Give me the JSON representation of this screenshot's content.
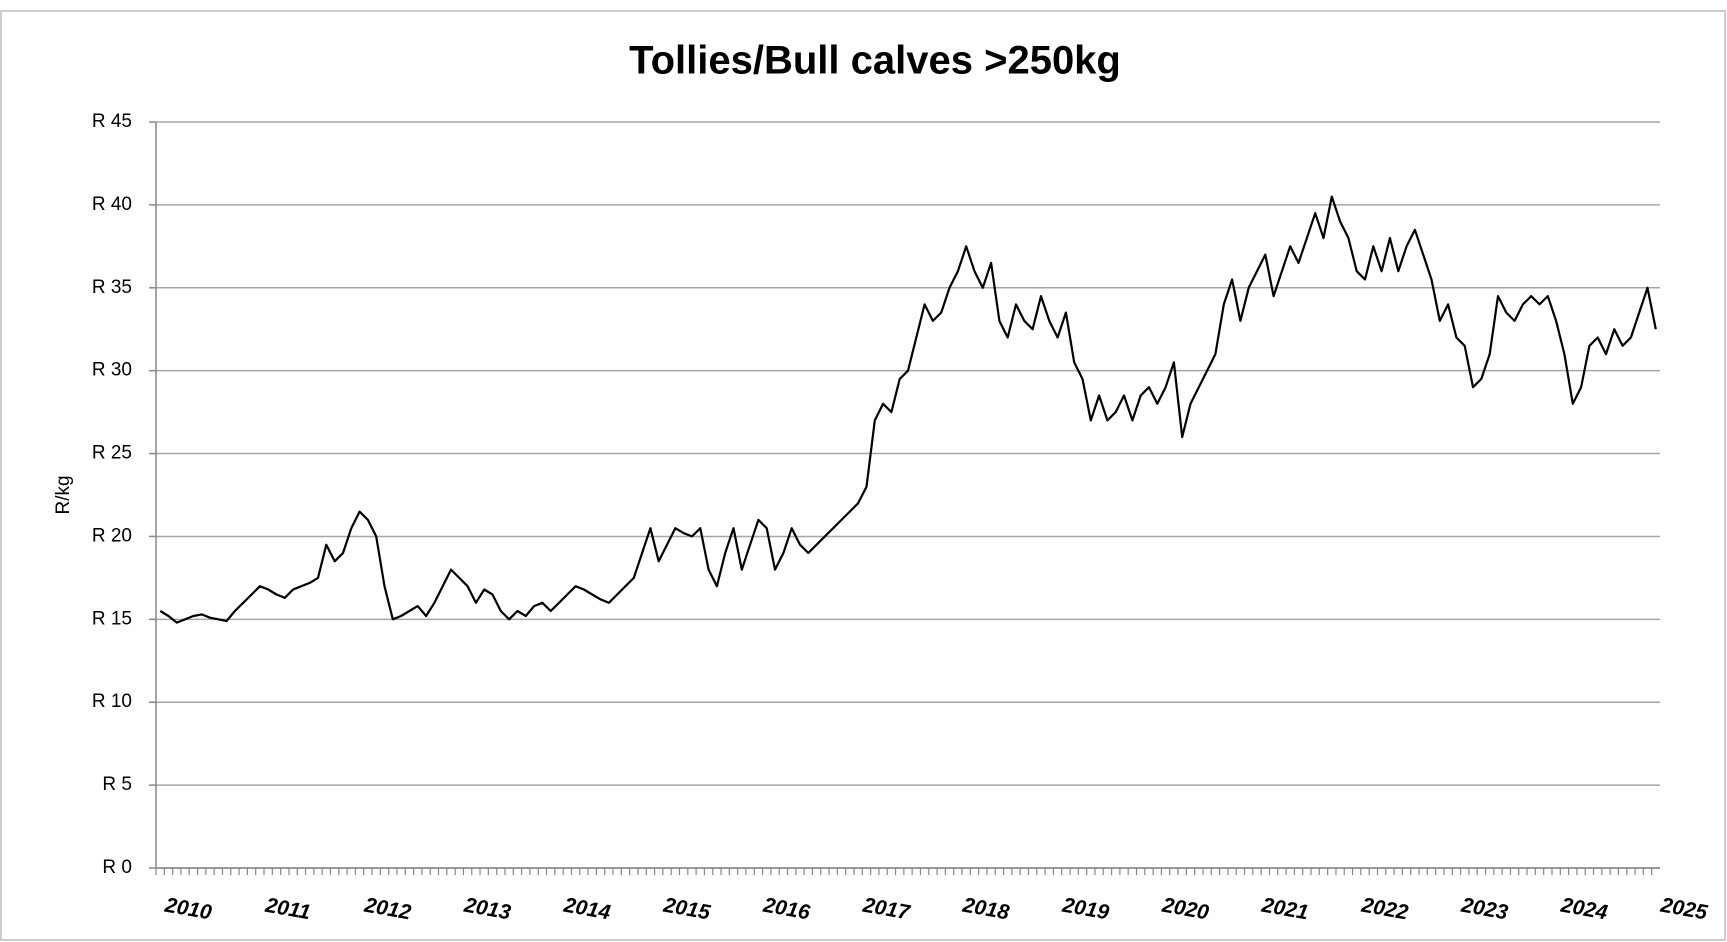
{
  "chart_data": {
    "type": "line",
    "title": "Tollies/Bull calves >250kg",
    "y_label": "R/kg",
    "categories": [
      "2010",
      null,
      null,
      null,
      null,
      null,
      null,
      null,
      null,
      null,
      null,
      null,
      "2011",
      null,
      null,
      null,
      null,
      null,
      null,
      null,
      null,
      null,
      null,
      null,
      "2012",
      null,
      null,
      null,
      null,
      null,
      null,
      null,
      null,
      null,
      null,
      null,
      "2013",
      null,
      null,
      null,
      null,
      null,
      null,
      null,
      null,
      null,
      null,
      null,
      "2014",
      null,
      null,
      null,
      null,
      null,
      null,
      null,
      null,
      null,
      null,
      null,
      "2015",
      null,
      null,
      null,
      null,
      null,
      null,
      null,
      null,
      null,
      null,
      null,
      "2016",
      null,
      null,
      null,
      null,
      null,
      null,
      null,
      null,
      null,
      null,
      null,
      "2017",
      null,
      null,
      null,
      null,
      null,
      null,
      null,
      null,
      null,
      null,
      null,
      "2018",
      null,
      null,
      null,
      null,
      null,
      null,
      null,
      null,
      null,
      null,
      null,
      "2019",
      null,
      null,
      null,
      null,
      null,
      null,
      null,
      null,
      null,
      null,
      null,
      "2020",
      null,
      null,
      null,
      null,
      null,
      null,
      null,
      null,
      null,
      null,
      null,
      "2021",
      null,
      null,
      null,
      null,
      null,
      null,
      null,
      null,
      null,
      null,
      null,
      "2022",
      null,
      null,
      null,
      null,
      null,
      null,
      null,
      null,
      null,
      null,
      null,
      "2023",
      null,
      null,
      null,
      null,
      null,
      null,
      null,
      null,
      null,
      null,
      null,
      "2024",
      null,
      null,
      null,
      null,
      null,
      null,
      null,
      null,
      null,
      null,
      null,
      "2025"
    ],
    "series": [
      {
        "name": "Tollies/Bull calves >250kg",
        "color": "#000000",
        "values": [
          15.5,
          15.2,
          14.8,
          15.0,
          15.2,
          15.3,
          15.1,
          15.0,
          14.9,
          15.5,
          16.0,
          16.5,
          17.0,
          16.8,
          16.5,
          16.3,
          16.8,
          17.0,
          17.2,
          17.5,
          19.5,
          18.5,
          19.0,
          20.5,
          21.5,
          21.0,
          20.0,
          17.0,
          15.0,
          15.2,
          15.5,
          15.8,
          15.2,
          16.0,
          17.0,
          18.0,
          17.5,
          17.0,
          16.0,
          16.8,
          16.5,
          15.5,
          15.0,
          15.5,
          15.2,
          15.8,
          16.0,
          15.5,
          16.0,
          16.5,
          17.0,
          16.8,
          16.5,
          16.2,
          16.0,
          16.5,
          17.0,
          17.5,
          19.0,
          20.5,
          18.5,
          19.5,
          20.5,
          20.2,
          20.0,
          20.5,
          18.0,
          17.0,
          19.0,
          20.5,
          18.0,
          19.5,
          21.0,
          20.5,
          18.0,
          19.0,
          20.5,
          19.5,
          19.0,
          19.5,
          20.0,
          20.5,
          21.0,
          21.5,
          22.0,
          23.0,
          27.0,
          28.0,
          27.5,
          29.5,
          30.0,
          32.0,
          34.0,
          33.0,
          33.5,
          35.0,
          36.0,
          37.5,
          36.0,
          35.0,
          36.5,
          33.0,
          32.0,
          34.0,
          33.0,
          32.5,
          34.5,
          33.0,
          32.0,
          33.5,
          30.5,
          29.5,
          27.0,
          28.5,
          27.0,
          27.5,
          28.5,
          27.0,
          28.5,
          29.0,
          28.0,
          29.0,
          30.5,
          26.0,
          28.0,
          29.0,
          30.0,
          31.0,
          34.0,
          35.5,
          33.0,
          35.0,
          36.0,
          37.0,
          34.5,
          36.0,
          37.5,
          36.5,
          38.0,
          39.5,
          38.0,
          40.5,
          39.0,
          38.0,
          36.0,
          35.5,
          37.5,
          36.0,
          38.0,
          36.0,
          37.5,
          38.5,
          37.0,
          35.5,
          33.0,
          34.0,
          32.0,
          31.5,
          29.0,
          29.5,
          31.0,
          34.5,
          33.5,
          33.0,
          34.0,
          34.5,
          34.0,
          34.5,
          33.0,
          31.0,
          28.0,
          29.0,
          31.5,
          32.0,
          31.0,
          32.5,
          31.5,
          32.0,
          33.5,
          35.0,
          32.5
        ]
      }
    ],
    "ylim": [
      0,
      45
    ],
    "yticks": [
      {
        "value": 0,
        "label": "R 0"
      },
      {
        "value": 5,
        "label": "R 5"
      },
      {
        "value": 10,
        "label": "R 10"
      },
      {
        "value": 15,
        "label": "R 15"
      },
      {
        "value": 20,
        "label": "R 20"
      },
      {
        "value": 25,
        "label": "R 25"
      },
      {
        "value": 30,
        "label": "R 30"
      },
      {
        "value": 35,
        "label": "R 35"
      },
      {
        "value": 40,
        "label": "R 40"
      },
      {
        "value": 45,
        "label": "R 45"
      }
    ],
    "grid": true
  }
}
